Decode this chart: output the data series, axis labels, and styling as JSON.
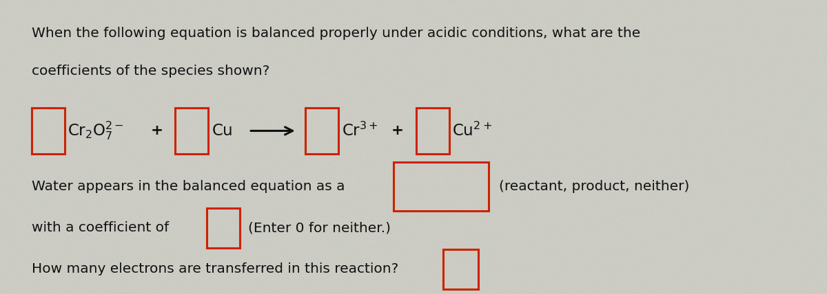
{
  "bg_color": "#ccccc4",
  "text_color": "#111111",
  "box_color": "#cc2200",
  "title_line1": "When the following equation is balanced properly under acidic conditions, what are the",
  "title_line2": "coefficients of the species shown?",
  "water_line1": "Water appears in the balanced equation as a",
  "water_line2": "with a coefficient of",
  "water_line2b": "(Enter 0 for neither.)",
  "electrons_line": "How many electrons are transferred in this reaction?",
  "font_size_text": 14.5,
  "font_size_chem": 15.5,
  "noise_seed": 42,
  "noise_alpha": 0.18
}
